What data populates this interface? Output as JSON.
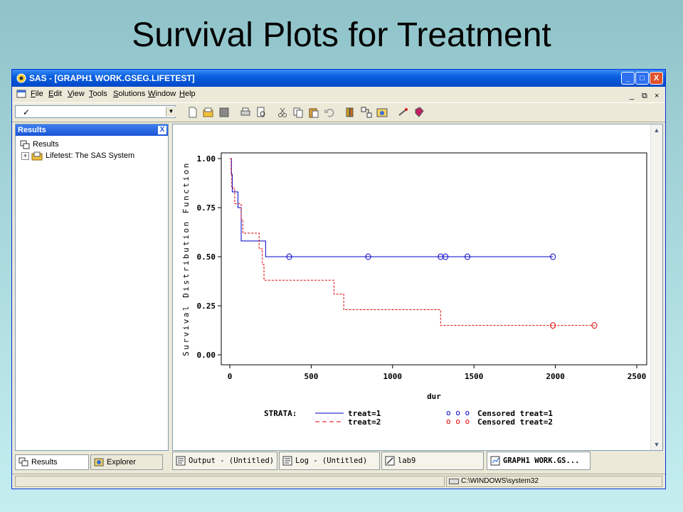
{
  "slide": {
    "title": "Survival Plots for Treatment"
  },
  "window": {
    "title": "SAS - [GRAPH1  WORK.GSEG.LIFETEST]",
    "controls": {
      "minimize": "_",
      "maximize": "□",
      "close": "X"
    }
  },
  "menu": {
    "items": [
      "File",
      "Edit",
      "View",
      "Tools",
      "Solutions",
      "Window",
      "Help"
    ],
    "mdi_controls": [
      "_",
      "⧉",
      "×"
    ]
  },
  "toolbar": {
    "command_value": "",
    "icons": [
      "new-icon",
      "open-icon",
      "save-icon",
      "print-icon",
      "print-preview-icon",
      "cut-icon",
      "copy-icon",
      "paste-icon",
      "undo-icon",
      "library-icon",
      "explorer-icon",
      "results-icon",
      "run-icon",
      "help-icon"
    ]
  },
  "results_panel": {
    "header": "Results",
    "close": "X",
    "tree": [
      {
        "label": "Results",
        "level": 0
      },
      {
        "label": "Lifetest:  The SAS System",
        "level": 1,
        "expander": "+"
      }
    ]
  },
  "left_tabs": [
    {
      "label": "Results",
      "icon": "results-tab-icon",
      "active": true
    },
    {
      "label": "Explorer",
      "icon": "explorer-tab-icon",
      "active": false
    }
  ],
  "taskbar": [
    {
      "label": "Output - (Untitled)",
      "icon": "output-icon",
      "active": false
    },
    {
      "label": "Log - (Untitled)",
      "icon": "log-icon",
      "active": false
    },
    {
      "label": "lab9",
      "icon": "editor-icon",
      "active": false
    },
    {
      "label": "GRAPH1  WORK.GS...",
      "icon": "graph-icon",
      "active": true
    }
  ],
  "status": {
    "path": "C:\\WINDOWS\\system32"
  },
  "chart_data": {
    "type": "line",
    "title": "",
    "xlabel": "dur",
    "ylabel": "Survival Distribution Function",
    "xlim": [
      0,
      2500
    ],
    "ylim": [
      0,
      1
    ],
    "xticks": [
      "0",
      "500",
      "1000",
      "1500",
      "2000",
      "2500"
    ],
    "yticks": [
      "0.00",
      "0.25",
      "0.50",
      "0.75",
      "1.00"
    ],
    "legend_label": "STRATA:",
    "legend_placement": "bottom",
    "series": [
      {
        "name": "treat=1",
        "color": "#0000cc",
        "style": "solid",
        "step_points": [
          [
            0,
            1.0
          ],
          [
            10,
            0.92
          ],
          [
            15,
            0.83
          ],
          [
            50,
            0.75
          ],
          [
            70,
            0.58
          ],
          [
            220,
            0.5
          ],
          [
            1985,
            0.5
          ]
        ],
        "censored": [
          365,
          850,
          1295,
          1325,
          1460,
          1985
        ],
        "censored_y": 0.5
      },
      {
        "name": "treat=2",
        "color": "#dd0000",
        "style": "dashed",
        "step_points": [
          [
            0,
            1.0
          ],
          [
            8,
            0.92
          ],
          [
            12,
            0.85
          ],
          [
            30,
            0.77
          ],
          [
            70,
            0.69
          ],
          [
            80,
            0.62
          ],
          [
            180,
            0.54
          ],
          [
            200,
            0.46
          ],
          [
            210,
            0.38
          ],
          [
            640,
            0.31
          ],
          [
            700,
            0.23
          ],
          [
            1295,
            0.15
          ],
          [
            2240,
            0.15
          ]
        ],
        "censored": [
          1985,
          2240
        ],
        "censored_y": 0.15
      }
    ],
    "censored_legend": [
      {
        "marker": "o o o",
        "label": "Censored treat=1",
        "color": "#0000cc"
      },
      {
        "marker": "o o o",
        "label": "Censored treat=2",
        "color": "#dd0000"
      }
    ]
  }
}
